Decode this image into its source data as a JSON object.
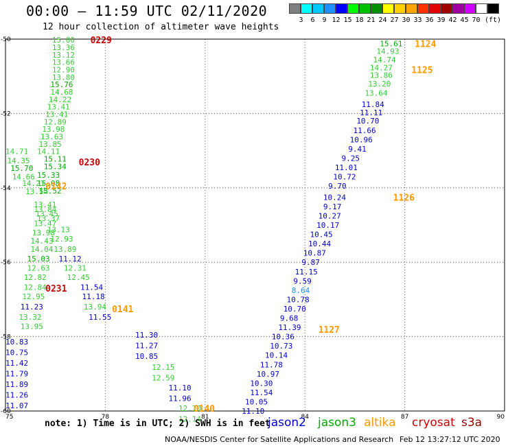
{
  "title": "00:00 – 11:59 UTC 02/11/2020",
  "subtitle": "12 hour collection of altimeter wave heights",
  "scale": {
    "unit": "(ft)",
    "swatches": [
      {
        "color": "#7f7f7f",
        "label": ""
      },
      {
        "color": "#00ffff",
        "label": "3"
      },
      {
        "color": "#00c8ff",
        "label": "6"
      },
      {
        "color": "#1e90ff",
        "label": "9"
      },
      {
        "color": "#0000ff",
        "label": "12"
      },
      {
        "color": "#00ff00",
        "label": "15"
      },
      {
        "color": "#00c000",
        "label": "18"
      },
      {
        "color": "#009000",
        "label": "21"
      },
      {
        "color": "#ffff00",
        "label": "24"
      },
      {
        "color": "#ffd000",
        "label": "27"
      },
      {
        "color": "#ffa500",
        "label": "30"
      },
      {
        "color": "#ff3000",
        "label": "33"
      },
      {
        "color": "#e00000",
        "label": "36"
      },
      {
        "color": "#a00000",
        "label": "39"
      },
      {
        "color": "#a000a0",
        "label": "42"
      },
      {
        "color": "#d000ff",
        "label": "45"
      },
      {
        "color": "#ffffff",
        "label": "70"
      },
      {
        "color": "#000000",
        "label": ""
      }
    ]
  },
  "map": {
    "lon_ticks": [
      "75",
      "78",
      "81",
      "84",
      "87",
      "90"
    ],
    "lat_ticks": [
      "-50",
      "-52",
      "-54",
      "-56",
      "-58",
      "-60"
    ],
    "lon_range": [
      75,
      90
    ],
    "lat_range": [
      -50,
      -60
    ],
    "grid": true,
    "colors": {
      "jason2": "#0000cc",
      "jason3": "#00aa00",
      "light_green": "#33cc33",
      "altika": "#ff9900",
      "cryosat": "#cc0000",
      "light_blue": "#1e90ff"
    },
    "passes": [
      {
        "lon": 75.0,
        "color": "jason2",
        "start": -58.14,
        "step": 0.285,
        "values": [
          "10.83",
          "10.75",
          "11.42",
          "11.79",
          "11.89",
          "11.26",
          "11.07"
        ]
      },
      {
        "lon": 78.9,
        "color": "jason2",
        "start": -57.95,
        "step": 0.285,
        "values": [
          "11.30",
          "11.27",
          "10.85"
        ]
      },
      {
        "lon": 79.4,
        "color": "light_green",
        "start": -58.82,
        "step": 0.285,
        "values": [
          "12.15",
          "12.59"
        ]
      },
      {
        "lon": 79.9,
        "color": "jason2",
        "start": -59.37,
        "step": 0.285,
        "values": [
          "11.10",
          "11.96"
        ]
      },
      {
        "lon": 80.2,
        "color": "light_green",
        "start": -59.93,
        "step": 0.285,
        "values": [
          "12.70",
          "12.14"
        ]
      }
    ],
    "points": [
      {
        "lon": 76.4,
        "lat": -50.02,
        "text": "15.00",
        "color": "light_green"
      },
      {
        "lon": 76.4,
        "lat": -50.22,
        "text": "13.36",
        "color": "light_green"
      },
      {
        "lon": 76.4,
        "lat": -50.42,
        "text": "13.12",
        "color": "light_green"
      },
      {
        "lon": 76.4,
        "lat": -50.62,
        "text": "13.66",
        "color": "light_green"
      },
      {
        "lon": 76.4,
        "lat": -50.82,
        "text": "12.90",
        "color": "light_green"
      },
      {
        "lon": 76.4,
        "lat": -51.02,
        "text": "13.80",
        "color": "light_green"
      },
      {
        "lon": 76.35,
        "lat": -51.22,
        "text": "15.76",
        "color": "jason3"
      },
      {
        "lon": 76.35,
        "lat": -51.42,
        "text": "14.68",
        "color": "light_green"
      },
      {
        "lon": 76.3,
        "lat": -51.62,
        "text": "14.22",
        "color": "light_green"
      },
      {
        "lon": 76.25,
        "lat": -51.82,
        "text": "13.41",
        "color": "light_green"
      },
      {
        "lon": 76.2,
        "lat": -52.02,
        "text": "13.41",
        "color": "light_green"
      },
      {
        "lon": 76.15,
        "lat": -52.22,
        "text": "12.89",
        "color": "light_green"
      },
      {
        "lon": 76.1,
        "lat": -52.42,
        "text": "13.98",
        "color": "light_green"
      },
      {
        "lon": 76.05,
        "lat": -52.62,
        "text": "13.63",
        "color": "light_green"
      },
      {
        "lon": 76.0,
        "lat": -52.82,
        "text": "13.85",
        "color": "light_green"
      },
      {
        "lon": 75.95,
        "lat": -53.02,
        "text": "14.11",
        "color": "light_green"
      },
      {
        "lon": 76.15,
        "lat": -53.22,
        "text": "15.11",
        "color": "jason3"
      },
      {
        "lon": 76.15,
        "lat": -53.42,
        "text": "15.34",
        "color": "jason3"
      },
      {
        "lon": 75.0,
        "lat": -53.02,
        "text": "14.71",
        "color": "light_green"
      },
      {
        "lon": 75.05,
        "lat": -53.27,
        "text": "14.35",
        "color": "light_green"
      },
      {
        "lon": 75.15,
        "lat": -53.47,
        "text": "15.70",
        "color": "jason3"
      },
      {
        "lon": 75.2,
        "lat": -53.7,
        "text": "14.66",
        "color": "light_green"
      },
      {
        "lon": 75.95,
        "lat": -53.65,
        "text": "15.33",
        "color": "jason3"
      },
      {
        "lon": 75.95,
        "lat": -53.87,
        "text": "15.08",
        "color": "jason3"
      },
      {
        "lon": 75.5,
        "lat": -53.87,
        "text": "14.21",
        "color": "light_green"
      },
      {
        "lon": 76.0,
        "lat": -54.08,
        "text": "15.52",
        "color": "jason3"
      },
      {
        "lon": 75.6,
        "lat": -54.1,
        "text": "13.54",
        "color": "light_green"
      },
      {
        "lon": 75.85,
        "lat": -54.45,
        "text": "13.41",
        "color": "light_green"
      },
      {
        "lon": 75.85,
        "lat": -54.58,
        "text": "13.84",
        "color": "light_green"
      },
      {
        "lon": 75.9,
        "lat": -54.7,
        "text": "13.45",
        "color": "light_green"
      },
      {
        "lon": 75.95,
        "lat": -54.82,
        "text": "13.37",
        "color": "light_green"
      },
      {
        "lon": 75.85,
        "lat": -54.95,
        "text": "13.47",
        "color": "light_green"
      },
      {
        "lon": 76.25,
        "lat": -55.12,
        "text": "13.13",
        "color": "light_green"
      },
      {
        "lon": 75.8,
        "lat": -55.2,
        "text": "13.98",
        "color": "light_green"
      },
      {
        "lon": 76.35,
        "lat": -55.37,
        "text": "12.93",
        "color": "light_green"
      },
      {
        "lon": 75.75,
        "lat": -55.42,
        "text": "14.43",
        "color": "light_green"
      },
      {
        "lon": 75.75,
        "lat": -55.65,
        "text": "14.04",
        "color": "light_green"
      },
      {
        "lon": 76.45,
        "lat": -55.65,
        "text": "13.89",
        "color": "light_green"
      },
      {
        "lon": 75.65,
        "lat": -55.9,
        "text": "15.03",
        "color": "jason3"
      },
      {
        "lon": 76.6,
        "lat": -55.9,
        "text": "11.12",
        "color": "jason2"
      },
      {
        "lon": 75.65,
        "lat": -56.15,
        "text": "12.63",
        "color": "light_green"
      },
      {
        "lon": 76.75,
        "lat": -56.15,
        "text": "12.31",
        "color": "light_green"
      },
      {
        "lon": 75.55,
        "lat": -56.4,
        "text": "12.82",
        "color": "light_green"
      },
      {
        "lon": 76.85,
        "lat": -56.4,
        "text": "12.45",
        "color": "light_green"
      },
      {
        "lon": 75.55,
        "lat": -56.67,
        "text": "12.84",
        "color": "light_green"
      },
      {
        "lon": 77.25,
        "lat": -56.67,
        "text": "11.54",
        "color": "jason2"
      },
      {
        "lon": 75.5,
        "lat": -56.92,
        "text": "12.95",
        "color": "light_green"
      },
      {
        "lon": 77.3,
        "lat": -56.92,
        "text": "11.18",
        "color": "jason2"
      },
      {
        "lon": 75.45,
        "lat": -57.2,
        "text": "11.23",
        "color": "jason2"
      },
      {
        "lon": 77.35,
        "lat": -57.2,
        "text": "13.94",
        "color": "light_green"
      },
      {
        "lon": 75.4,
        "lat": -57.47,
        "text": "13.32",
        "color": "light_green"
      },
      {
        "lon": 77.5,
        "lat": -57.47,
        "text": "11.55",
        "color": "jason2"
      },
      {
        "lon": 75.45,
        "lat": -57.72,
        "text": "13.95",
        "color": "light_green"
      },
      {
        "lon": 86.25,
        "lat": -50.12,
        "text": "15.61",
        "color": "jason3"
      },
      {
        "lon": 86.15,
        "lat": -50.32,
        "text": "14.93",
        "color": "light_green"
      },
      {
        "lon": 86.05,
        "lat": -50.55,
        "text": "14.74",
        "color": "light_green"
      },
      {
        "lon": 85.95,
        "lat": -50.77,
        "text": "14.27",
        "color": "light_green"
      },
      {
        "lon": 85.95,
        "lat": -50.97,
        "text": "13.86",
        "color": "light_green"
      },
      {
        "lon": 85.9,
        "lat": -51.2,
        "text": "13.20",
        "color": "light_green"
      },
      {
        "lon": 85.8,
        "lat": -51.45,
        "text": "13.64",
        "color": "light_green"
      },
      {
        "lon": 85.7,
        "lat": -51.75,
        "text": "11.84",
        "color": "jason2"
      },
      {
        "lon": 85.65,
        "lat": -51.97,
        "text": "11.11",
        "color": "jason2"
      },
      {
        "lon": 85.55,
        "lat": -52.2,
        "text": "10.70",
        "color": "jason2"
      },
      {
        "lon": 85.45,
        "lat": -52.45,
        "text": "11.66",
        "color": "jason2"
      },
      {
        "lon": 85.35,
        "lat": -52.7,
        "text": "10.96",
        "color": "jason2"
      },
      {
        "lon": 85.3,
        "lat": -52.95,
        "text": "9.41",
        "color": "jason2"
      },
      {
        "lon": 85.1,
        "lat": -53.2,
        "text": "9.25",
        "color": "jason2"
      },
      {
        "lon": 84.9,
        "lat": -53.45,
        "text": "11.01",
        "color": "jason2"
      },
      {
        "lon": 84.85,
        "lat": -53.7,
        "text": "10.72",
        "color": "jason2"
      },
      {
        "lon": 84.7,
        "lat": -53.95,
        "text": "9.70",
        "color": "jason2"
      },
      {
        "lon": 84.55,
        "lat": -54.25,
        "text": "10.24",
        "color": "jason2"
      },
      {
        "lon": 84.55,
        "lat": -54.5,
        "text": "9.17",
        "color": "jason2"
      },
      {
        "lon": 84.4,
        "lat": -54.75,
        "text": "10.27",
        "color": "jason2"
      },
      {
        "lon": 84.35,
        "lat": -55.0,
        "text": "10.17",
        "color": "jason2"
      },
      {
        "lon": 84.15,
        "lat": -55.25,
        "text": "10.45",
        "color": "jason2"
      },
      {
        "lon": 84.1,
        "lat": -55.5,
        "text": "10.44",
        "color": "jason2"
      },
      {
        "lon": 83.95,
        "lat": -55.75,
        "text": "10.87",
        "color": "jason2"
      },
      {
        "lon": 83.9,
        "lat": -56.0,
        "text": "9.87",
        "color": "jason2"
      },
      {
        "lon": 83.7,
        "lat": -56.25,
        "text": "11.15",
        "color": "jason2"
      },
      {
        "lon": 83.65,
        "lat": -56.5,
        "text": "9.59",
        "color": "jason2"
      },
      {
        "lon": 83.6,
        "lat": -56.75,
        "text": "8.64",
        "color": "light_blue"
      },
      {
        "lon": 83.45,
        "lat": -57.0,
        "text": "10.78",
        "color": "jason2"
      },
      {
        "lon": 83.35,
        "lat": -57.25,
        "text": "10.70",
        "color": "jason2"
      },
      {
        "lon": 83.25,
        "lat": -57.5,
        "text": "9.68",
        "color": "jason2"
      },
      {
        "lon": 83.2,
        "lat": -57.75,
        "text": "11.39",
        "color": "jason2"
      },
      {
        "lon": 83.0,
        "lat": -58.0,
        "text": "10.36",
        "color": "jason2"
      },
      {
        "lon": 82.95,
        "lat": -58.25,
        "text": "10.73",
        "color": "jason2"
      },
      {
        "lon": 82.8,
        "lat": -58.5,
        "text": "10.14",
        "color": "jason2"
      },
      {
        "lon": 82.65,
        "lat": -58.75,
        "text": "11.78",
        "color": "jason2"
      },
      {
        "lon": 82.55,
        "lat": -59.0,
        "text": "10.97",
        "color": "jason2"
      },
      {
        "lon": 82.35,
        "lat": -59.25,
        "text": "10.30",
        "color": "jason2"
      },
      {
        "lon": 82.35,
        "lat": -59.5,
        "text": "11.54",
        "color": "jason2"
      },
      {
        "lon": 82.2,
        "lat": -59.75,
        "text": "10.05",
        "color": "jason2"
      },
      {
        "lon": 82.1,
        "lat": -60.0,
        "text": "11.10",
        "color": "jason2"
      }
    ],
    "time_labels": [
      {
        "lon": 77.55,
        "lat": -50.02,
        "text": "0229",
        "color": "cryosat"
      },
      {
        "lon": 77.2,
        "lat": -53.3,
        "text": "0230",
        "color": "cryosat"
      },
      {
        "lon": 76.2,
        "lat": -56.7,
        "text": "0231",
        "color": "cryosat"
      },
      {
        "lon": 76.2,
        "lat": -53.95,
        "text": "0142",
        "color": "altika"
      },
      {
        "lon": 78.2,
        "lat": -57.25,
        "text": "0141",
        "color": "altika"
      },
      {
        "lon": 80.65,
        "lat": -59.93,
        "text": "0140",
        "color": "altika"
      },
      {
        "lon": 87.3,
        "lat": -50.12,
        "text": "1124",
        "color": "altika"
      },
      {
        "lon": 87.2,
        "lat": -50.82,
        "text": "1125",
        "color": "altika"
      },
      {
        "lon": 86.65,
        "lat": -54.25,
        "text": "1126",
        "color": "altika"
      },
      {
        "lon": 84.4,
        "lat": -57.8,
        "text": "1127",
        "color": "altika"
      }
    ]
  },
  "note": "note: 1) Time is in UTC; 2) SWH is in feet",
  "legend": [
    {
      "text": "jason2",
      "color": "#0000cc"
    },
    {
      "text": "jason3",
      "color": "#00aa00"
    },
    {
      "text": "altika",
      "color": "#ff9900"
    },
    {
      "text": "cryosat",
      "color": "#cc0000"
    },
    {
      "text": "s3a",
      "color": "#990000"
    }
  ],
  "credit": "NOAA/NESDIS Center for Satellite Applications and Research",
  "stamp": "Feb 12 13:27:12 UTC 2020"
}
